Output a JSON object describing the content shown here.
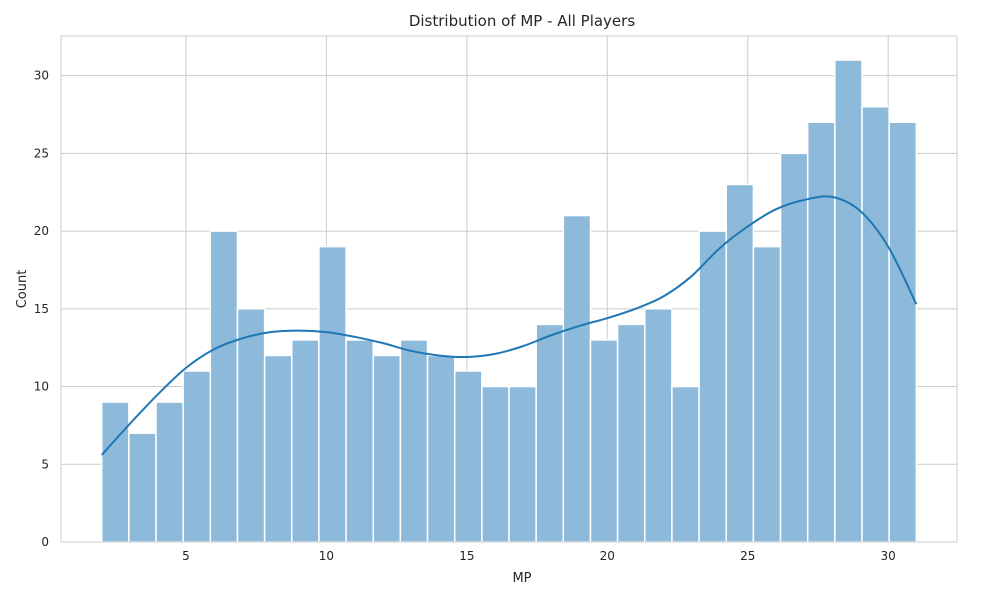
{
  "chart_data": {
    "type": "histogram",
    "title": "Distribution of MP - All Players",
    "xlabel": "MP",
    "ylabel": "Count",
    "xlim": [
      0.55,
      32.45
    ],
    "ylim": [
      0,
      32.55
    ],
    "xticks": [
      5,
      10,
      15,
      20,
      25,
      30
    ],
    "yticks": [
      0,
      5,
      10,
      15,
      20,
      25,
      30
    ],
    "grid": true,
    "bar_color": "#8db9da",
    "bar_edge_color": "#ffffff",
    "kde_color": "#1f77b4",
    "grid_color": "#cccccc",
    "bin_start": 2,
    "bin_width": 0.9667,
    "counts": [
      9,
      7,
      9,
      11,
      20,
      15,
      12,
      13,
      19,
      13,
      12,
      13,
      12,
      11,
      10,
      10,
      14,
      21,
      13,
      14,
      15,
      10,
      20,
      23,
      19,
      25,
      27,
      31,
      28,
      27
    ],
    "kde": {
      "x": [
        2,
        3,
        4,
        5,
        6,
        7,
        8,
        9,
        10,
        11,
        12,
        13,
        14,
        15,
        16,
        17,
        18,
        19,
        20,
        21,
        22,
        23,
        24,
        25,
        26,
        27,
        28,
        29,
        30,
        31
      ],
      "y": [
        5.6,
        7.6,
        9.5,
        11.2,
        12.4,
        13.1,
        13.5,
        13.6,
        13.5,
        13.2,
        12.8,
        12.3,
        12.0,
        11.9,
        12.1,
        12.6,
        13.3,
        13.9,
        14.4,
        15.0,
        15.8,
        17.1,
        18.9,
        20.3,
        21.4,
        22.0,
        22.2,
        21.3,
        19.0,
        15.3
      ]
    }
  }
}
